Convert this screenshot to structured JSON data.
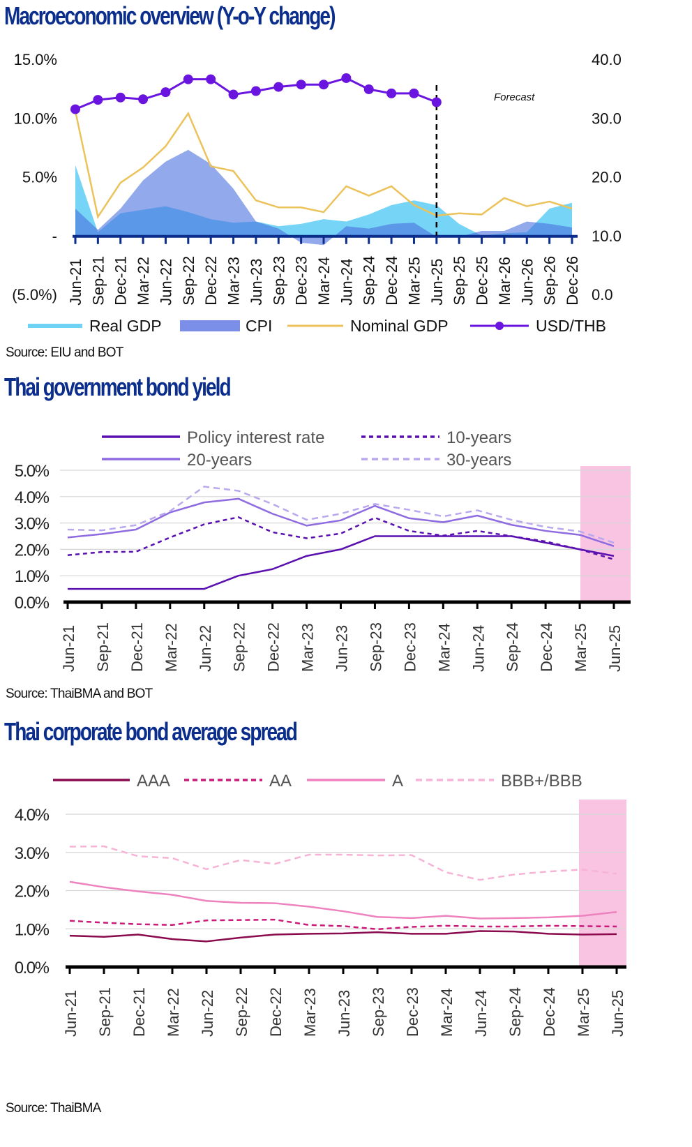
{
  "sections": {
    "macro": {
      "title": "Macroeconomic overview (Y-o-Y change)",
      "source": "Source: EIU and BOT",
      "forecast_label": "Forecast"
    },
    "govbond": {
      "title": "Thai government bond yield",
      "source": "Source: ThaiBMA and BOT"
    },
    "corpbond": {
      "title": "Thai corporate bond average spread",
      "source": "Source: ThaiBMA"
    }
  },
  "colors": {
    "title": "#0b2d8c",
    "real_gdp": "#6fd3f5",
    "cpi": "#7b8fe8",
    "nominal_gdp": "#ecc25a",
    "usd_thb": "#6a14e0",
    "axis_dark_blue": "#0b2d8c",
    "policy": "#5a10b0",
    "y10": "#5a10b0",
    "y20": "#8e6be0",
    "y30": "#b9a8ee",
    "aaa": "#8a0a4e",
    "aa": "#cc1a78",
    "a": "#ee82bf",
    "bbb": "#f6b3d6",
    "shade": "#f8c4e2"
  },
  "chart_data": [
    {
      "id": "macro",
      "type": "area",
      "title": "Macroeconomic overview (Y-o-Y change)",
      "categories": [
        "Jun-21",
        "Sep-21",
        "Dec-21",
        "Mar-22",
        "Jun-22",
        "Sep-22",
        "Dec-22",
        "Mar-23",
        "Jun-23",
        "Sep-23",
        "Dec-23",
        "Mar-24",
        "Jun-24",
        "Sep-24",
        "Dec-24",
        "Mar-25",
        "Jun-25",
        "Sep-25",
        "Dec-25",
        "Mar-26",
        "Jun-26",
        "Sep-26",
        "Dec-26"
      ],
      "y_left": {
        "ticks": [
          "15.0%",
          "10.0%",
          "5.0%",
          "-",
          "(5.0%)"
        ],
        "range": [
          -5,
          15
        ]
      },
      "y_right": {
        "ticks": [
          "40.0",
          "30.0",
          "20.0",
          "10.0",
          "0.0"
        ],
        "range": [
          0,
          40
        ]
      },
      "forecast_start": "Jun-25",
      "annotations": [
        "Forecast"
      ],
      "legend_position": "bottom",
      "series": [
        {
          "name": "Real GDP",
          "kind": "area",
          "axis": "left",
          "values": [
            6.0,
            0.3,
            1.9,
            2.2,
            2.5,
            2.0,
            1.4,
            1.1,
            1.2,
            0.8,
            1.0,
            1.4,
            1.2,
            1.8,
            2.6,
            3.0,
            2.6,
            1.0,
            0.0,
            0.2,
            0.3,
            2.3,
            2.8
          ]
        },
        {
          "name": "CPI",
          "kind": "area",
          "axis": "left",
          "values": [
            2.3,
            0.5,
            2.3,
            4.7,
            6.3,
            7.3,
            6.1,
            4.0,
            1.2,
            0.6,
            -0.6,
            -0.8,
            0.8,
            0.6,
            1.0,
            1.1,
            -0.1,
            -0.1,
            0.4,
            0.4,
            1.2,
            1.0,
            0.7
          ]
        },
        {
          "name": "Nominal GDP",
          "kind": "line",
          "axis": "left",
          "values": [
            10.6,
            1.6,
            4.5,
            5.8,
            7.6,
            10.4,
            5.9,
            5.5,
            3.0,
            2.4,
            2.4,
            2.0,
            4.2,
            3.4,
            4.2,
            2.6,
            1.7,
            1.9,
            1.8,
            3.2,
            2.5,
            2.9,
            2.3
          ]
        },
        {
          "name": "USD/THB",
          "kind": "line-marker",
          "axis": "right",
          "values": [
            31.5,
            33.1,
            33.5,
            33.2,
            34.4,
            36.6,
            36.6,
            34.0,
            34.6,
            35.3,
            35.7,
            35.7,
            36.8,
            34.9,
            34.2,
            34.2,
            32.7
          ]
        }
      ]
    },
    {
      "id": "govbond",
      "type": "line",
      "title": "Thai government bond yield",
      "categories": [
        "Jun-21",
        "Sep-21",
        "Dec-21",
        "Mar-22",
        "Jun-22",
        "Sep-22",
        "Dec-22",
        "Mar-23",
        "Jun-23",
        "Sep-23",
        "Dec-23",
        "Mar-24",
        "Jun-24",
        "Sep-24",
        "Dec-24",
        "Mar-25",
        "Jun-25"
      ],
      "y_ticks": [
        "5.0%",
        "4.0%",
        "3.0%",
        "2.0%",
        "1.0%",
        "0.0%"
      ],
      "ylim": [
        0,
        5
      ],
      "grid": true,
      "highlight_range": [
        "Mar-25",
        "Jun-25"
      ],
      "legend_position": "top",
      "series": [
        {
          "name": "Policy interest rate",
          "style": "solid",
          "values": [
            0.5,
            0.5,
            0.5,
            0.5,
            0.5,
            1.0,
            1.25,
            1.75,
            2.0,
            2.5,
            2.5,
            2.5,
            2.5,
            2.5,
            2.25,
            2.0,
            1.75
          ]
        },
        {
          "name": "10-years",
          "style": "dotted",
          "values": [
            1.78,
            1.9,
            1.91,
            2.45,
            2.95,
            3.22,
            2.65,
            2.42,
            2.6,
            3.2,
            2.7,
            2.52,
            2.7,
            2.5,
            2.3,
            2.0,
            1.62
          ]
        },
        {
          "name": "20-years",
          "style": "solid",
          "values": [
            2.45,
            2.58,
            2.75,
            3.4,
            3.78,
            3.92,
            3.35,
            2.9,
            3.1,
            3.65,
            3.18,
            3.03,
            3.28,
            2.93,
            2.7,
            2.55,
            2.12
          ]
        },
        {
          "name": "30-years",
          "style": "dashed",
          "values": [
            2.75,
            2.72,
            2.92,
            3.45,
            4.38,
            4.22,
            3.72,
            3.12,
            3.35,
            3.72,
            3.5,
            3.25,
            3.48,
            3.12,
            2.85,
            2.68,
            2.25
          ]
        }
      ]
    },
    {
      "id": "corpbond",
      "type": "line",
      "title": "Thai corporate bond average spread",
      "categories": [
        "Jun-21",
        "Sep-21",
        "Dec-21",
        "Mar-22",
        "Jun-22",
        "Sep-22",
        "Dec-22",
        "Mar-23",
        "Jun-23",
        "Sep-23",
        "Dec-23",
        "Mar-24",
        "Jun-24",
        "Sep-24",
        "Dec-24",
        "Mar-25",
        "Jun-25"
      ],
      "y_ticks": [
        "4.0%",
        "3.0%",
        "2.0%",
        "1.0%",
        "0.0%"
      ],
      "ylim": [
        0,
        4
      ],
      "grid": true,
      "highlight_range": [
        "Mar-25",
        "Jun-25"
      ],
      "legend_position": "top",
      "series": [
        {
          "name": "AAA",
          "style": "solid",
          "values": [
            0.82,
            0.79,
            0.85,
            0.73,
            0.67,
            0.77,
            0.85,
            0.87,
            0.88,
            0.91,
            0.87,
            0.87,
            0.94,
            0.93,
            0.87,
            0.85,
            0.86
          ]
        },
        {
          "name": "AA",
          "style": "dotted",
          "values": [
            1.21,
            1.16,
            1.12,
            1.1,
            1.22,
            1.23,
            1.24,
            1.1,
            1.07,
            0.99,
            1.05,
            1.08,
            1.06,
            1.06,
            1.08,
            1.07,
            1.06
          ]
        },
        {
          "name": "A",
          "style": "solid",
          "values": [
            2.23,
            2.09,
            1.98,
            1.89,
            1.73,
            1.68,
            1.67,
            1.58,
            1.46,
            1.31,
            1.28,
            1.34,
            1.27,
            1.28,
            1.3,
            1.34,
            1.44
          ]
        },
        {
          "name": "BBB+/BBB",
          "style": "dashed",
          "values": [
            3.15,
            3.16,
            2.9,
            2.85,
            2.56,
            2.8,
            2.7,
            2.94,
            2.94,
            2.92,
            2.93,
            2.48,
            2.28,
            2.42,
            2.5,
            2.55,
            2.44
          ]
        }
      ]
    }
  ]
}
